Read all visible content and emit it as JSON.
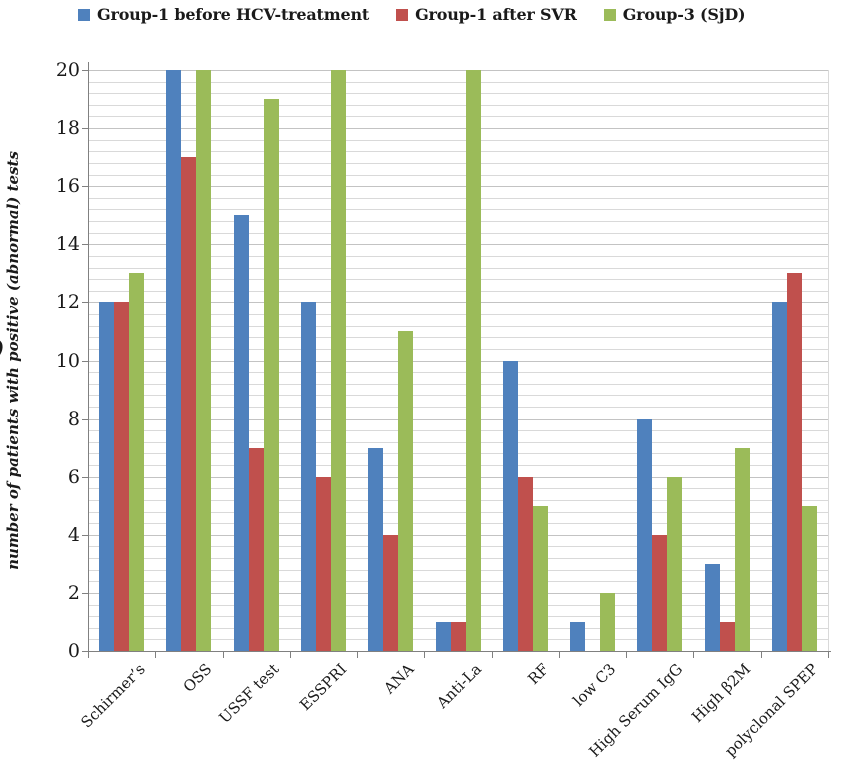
{
  "stray_mark": ")",
  "colors": {
    "series_blue": "#4F81BD",
    "series_red": "#C0504D",
    "series_green": "#9BBB59",
    "axis_line": "#808080",
    "gridline_minor": "#D9D9D9",
    "gridline_major": "#C3C3C3",
    "text": "#1A1A1A"
  },
  "chart_data": {
    "type": "bar",
    "title": "",
    "xlabel": "",
    "ylabel": "number of patients with positive (abnormal) tests",
    "ylim": [
      0,
      20
    ],
    "ytick_step": 2,
    "minor_grid_step": 0.4,
    "grid": true,
    "legend_position": "top",
    "categories": [
      "Schirmer’s",
      "OSS",
      "USSF test",
      "ESSPRI",
      "ANA",
      "Anti-La",
      "RF",
      "low C3",
      "High Serum IgG",
      "High β2M",
      "polyclonal SPEP"
    ],
    "series": [
      {
        "name": "Group-1 before HCV-treatment",
        "color": "#4F81BD",
        "values": [
          12,
          20,
          15,
          12,
          7,
          1,
          10,
          1,
          8,
          3,
          12
        ]
      },
      {
        "name": "Group-1 after SVR",
        "color": "#C0504D",
        "values": [
          12,
          17,
          7,
          6,
          4,
          1,
          6,
          0,
          4,
          1,
          13
        ]
      },
      {
        "name": "Group-3 (SjD)",
        "color": "#9BBB59",
        "values": [
          13,
          20,
          19,
          20,
          11,
          20,
          5,
          2,
          6,
          7,
          5
        ]
      }
    ]
  }
}
